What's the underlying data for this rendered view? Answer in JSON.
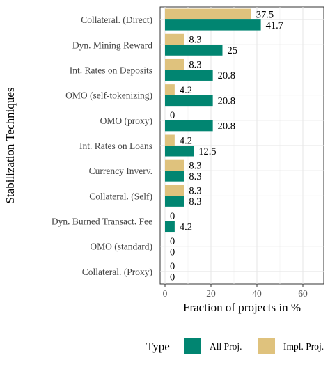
{
  "chart_data": {
    "type": "bar",
    "orientation": "horizontal",
    "categories": [
      "Collateral. (Direct)",
      "Dyn. Mining Reward",
      "Int. Rates on Deposits",
      "OMO (self-tokenizing)",
      "OMO (proxy)",
      "Int. Rates on Loans",
      "Currency Inverv.",
      "Collateral. (Self)",
      "Dyn. Burned Transact. Fee",
      "OMO (standard)",
      "Collateral. (Proxy)"
    ],
    "series": [
      {
        "name": "Impl. Proj.",
        "color": "#dfc27d",
        "values": [
          37.5,
          8.3,
          8.3,
          4.2,
          0,
          4.2,
          8.3,
          8.3,
          0,
          0,
          0
        ],
        "labels": [
          "37.5",
          "8.3",
          "8.3",
          "4.2",
          "0",
          "4.2",
          "8.3",
          "8.3",
          "0",
          "0",
          "0"
        ]
      },
      {
        "name": "All Proj.",
        "color": "#018571",
        "values": [
          41.7,
          25,
          20.8,
          20.8,
          20.8,
          12.5,
          8.3,
          8.3,
          4.2,
          0,
          0
        ],
        "labels": [
          "41.7",
          "25",
          "20.8",
          "20.8",
          "20.8",
          "12.5",
          "8.3",
          "8.3",
          "4.2",
          "0",
          "0"
        ]
      }
    ],
    "xlabel": "Fraction of projects in %",
    "ylabel": "Stabilization Techniques",
    "xticks": [
      "0",
      "20",
      "40",
      "60"
    ],
    "xlim": [
      0,
      70
    ],
    "grid": true,
    "legend": {
      "title": "Type",
      "position": "bottom",
      "entries": [
        {
          "label": "All Proj.",
          "color": "#018571"
        },
        {
          "label": "Impl. Proj.",
          "color": "#dfc27d"
        }
      ]
    }
  }
}
